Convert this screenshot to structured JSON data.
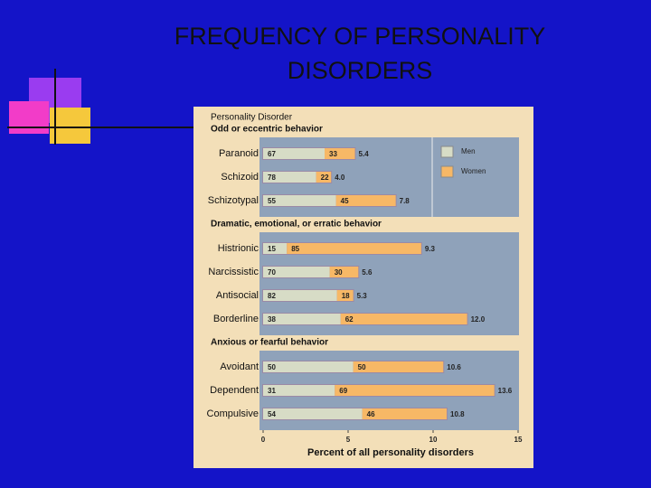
{
  "slide": {
    "title_lines": [
      "FREQUENCY OF PERSONALITY",
      "DISORDERS"
    ]
  },
  "chart_data": {
    "type": "bar",
    "header": "Personality Disorder",
    "xlabel": "Percent of all personality disorders",
    "xlim": [
      0,
      15
    ],
    "xticks": [
      0,
      5,
      10,
      15
    ],
    "series": [
      {
        "name": "Men",
        "color": "#d7dcc6"
      },
      {
        "name": "Women",
        "color": "#f7b866"
      }
    ],
    "groups": [
      {
        "name": "Odd or eccentric behavior",
        "categories": [
          "Paranoid",
          "Schizoid",
          "Schizotypal"
        ],
        "men": [
          67,
          78,
          55
        ],
        "women": [
          33,
          22,
          45
        ],
        "totals": [
          5.4,
          4.0,
          7.8
        ],
        "total_labels": [
          "5.4",
          "4.0",
          "7.8"
        ]
      },
      {
        "name": "Dramatic, emotional, or erratic behavior",
        "categories": [
          "Histrionic",
          "Narcissistic",
          "Antisocial",
          "Borderline"
        ],
        "men": [
          15,
          70,
          82,
          38
        ],
        "women": [
          85,
          30,
          18,
          62
        ],
        "totals": [
          9.3,
          5.6,
          5.3,
          12.0
        ],
        "total_labels": [
          "9.3",
          "5.6",
          "5.3",
          "12.0"
        ]
      },
      {
        "name": "Anxious or fearful behavior",
        "categories": [
          "Avoidant",
          "Dependent",
          "Compulsive"
        ],
        "men": [
          50,
          31,
          54
        ],
        "women": [
          50,
          69,
          46
        ],
        "totals": [
          10.6,
          13.6,
          10.8
        ],
        "total_labels": [
          "10.6",
          "13.6",
          "10.8"
        ]
      }
    ]
  }
}
